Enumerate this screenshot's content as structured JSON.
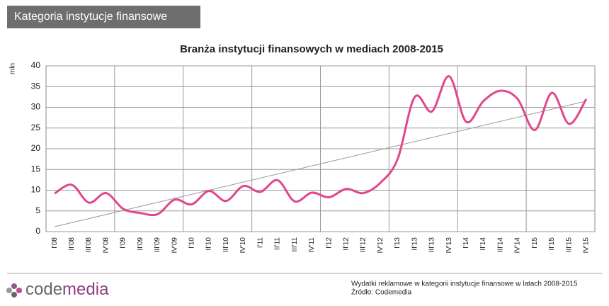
{
  "header": {
    "title": "Kategoria instytucje finansowe"
  },
  "chart_data": {
    "type": "line",
    "title": "Branża instytucji finansowych w mediach 2008-2015",
    "y_label": "mln",
    "categories": [
      "I'08",
      "II'08",
      "III'08",
      "IV'08",
      "I'09",
      "II'09",
      "III'09",
      "IV'09",
      "I'10",
      "II'10",
      "III'10",
      "IV'10",
      "I'11",
      "II'11",
      "III'11",
      "IV'11",
      "I'12",
      "II'12",
      "III'12",
      "IV'12",
      "I'13",
      "II'13",
      "III'13",
      "IV'13",
      "I'14",
      "II'14",
      "III'14",
      "IV'14",
      "I'15",
      "II'15",
      "III'15",
      "IV'15"
    ],
    "series": [
      {
        "color": "#e0478f",
        "values": [
          9.2,
          11.3,
          7,
          9.3,
          5.5,
          4.5,
          4.2,
          7.7,
          6.6,
          9.8,
          7.4,
          11,
          9.6,
          12.4,
          7.3,
          9.4,
          8.3,
          10.3,
          9.3,
          11.8,
          17.5,
          32.5,
          29,
          37.5,
          26.5,
          31.5,
          34,
          32,
          24.5,
          33.5,
          26,
          32
        ]
      }
    ],
    "trend": {
      "color": "#999999",
      "values": [
        1.2,
        31.5
      ]
    },
    "ylim": [
      0,
      40
    ],
    "yticks": [
      0,
      5,
      10,
      15,
      20,
      25,
      30,
      35,
      40
    ],
    "grid": true
  },
  "footer": {
    "logo_code": "code",
    "logo_media": "media",
    "note": "Wydatki reklamowe w kategorii instytucje finansowe w latach 2008-2015",
    "source": "Źródło: Codemedia"
  }
}
